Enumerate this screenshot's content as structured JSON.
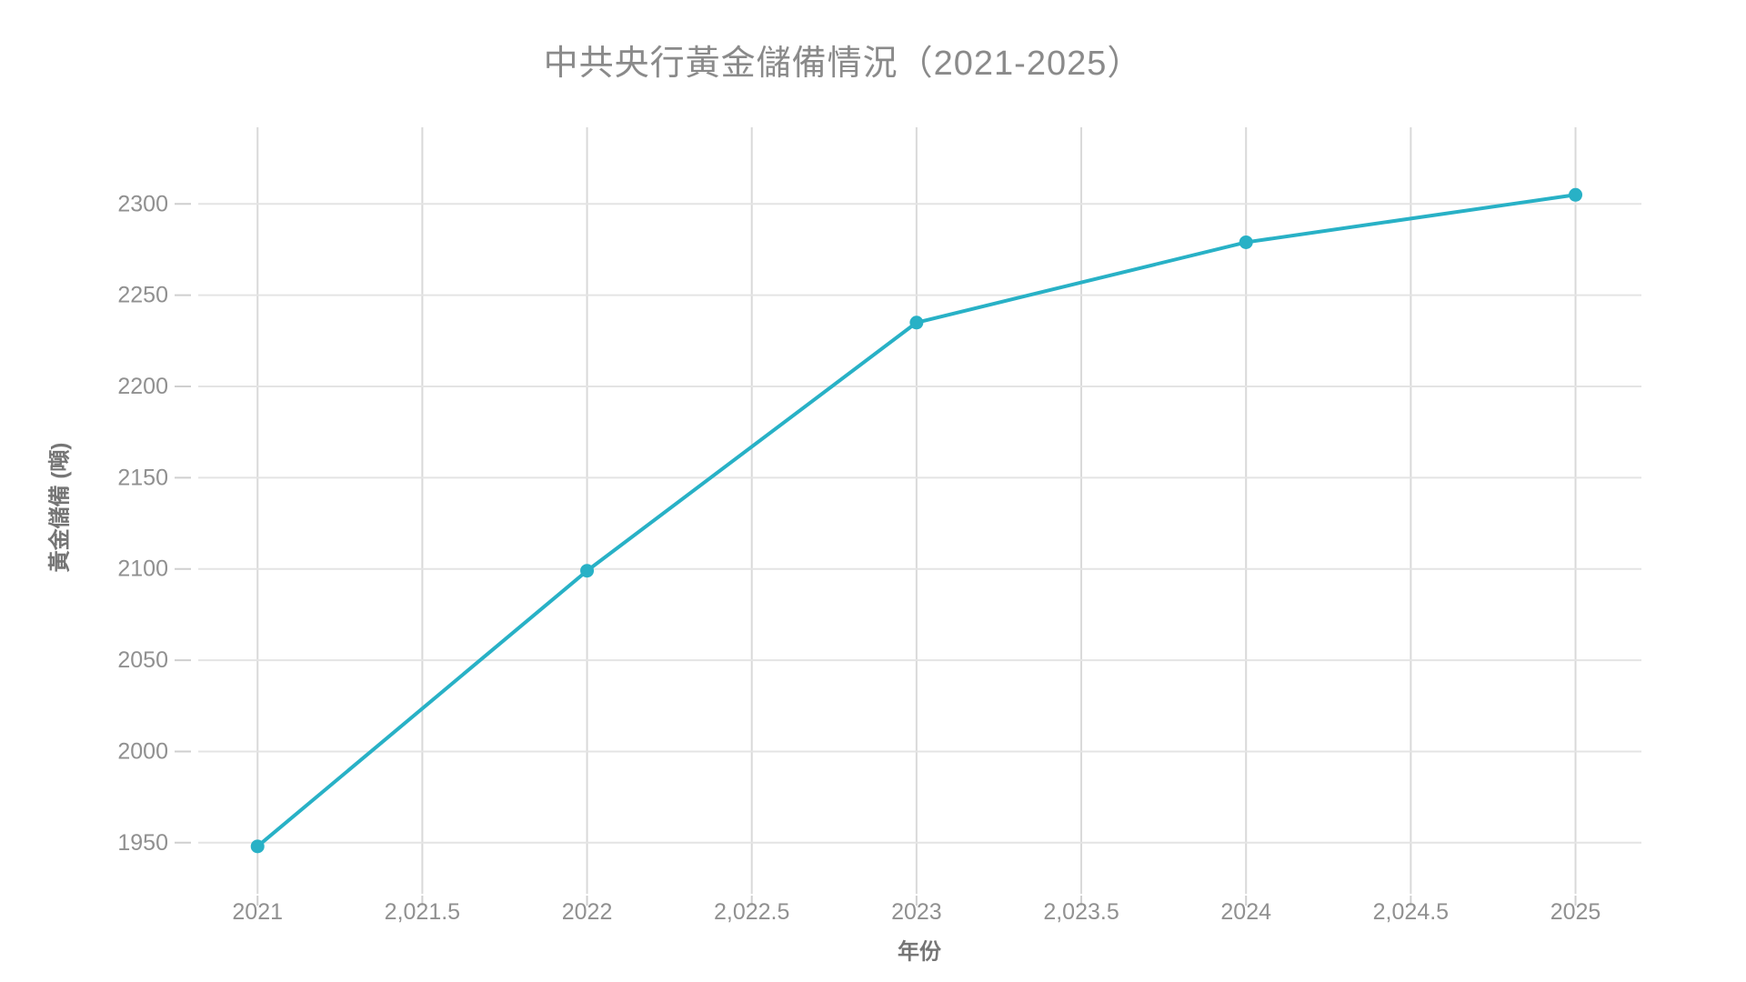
{
  "chart_data": {
    "type": "line",
    "title": "中共央行黃金儲備情況（2021-2025）",
    "xlabel": "年份",
    "ylabel": "黃金儲備 (噸)",
    "x": [
      2021,
      2022,
      2023,
      2024,
      2025
    ],
    "series": [
      {
        "name": "黃金儲備",
        "values": [
          1948,
          2099,
          2235,
          2279,
          2305
        ]
      }
    ],
    "x_ticks": {
      "values": [
        2021,
        2021.5,
        2022,
        2022.5,
        2023,
        2023.5,
        2024,
        2024.5,
        2025
      ],
      "labels": [
        "2021",
        "2,021.5",
        "2022",
        "2,022.5",
        "2023",
        "2,023.5",
        "2024",
        "2,024.5",
        "2025"
      ]
    },
    "y_ticks": {
      "values": [
        1950,
        2000,
        2050,
        2100,
        2150,
        2200,
        2250,
        2300
      ],
      "labels": [
        "1950",
        "2000",
        "2050",
        "2100",
        "2150",
        "2200",
        "2250",
        "2300"
      ]
    },
    "xlim": [
      2020.82,
      2025.2
    ],
    "ylim": [
      1922,
      2342
    ],
    "grid": true,
    "legend": "none",
    "colors": {
      "line": "#28b1c6",
      "point": "#28b1c6",
      "grid_horizontal": "#e4e4e4",
      "grid_vertical": "#d9d9d9",
      "tick_text": "#909090",
      "title_text": "#8a8a8a",
      "axis_title_text": "#757575",
      "background": "#ffffff"
    }
  }
}
